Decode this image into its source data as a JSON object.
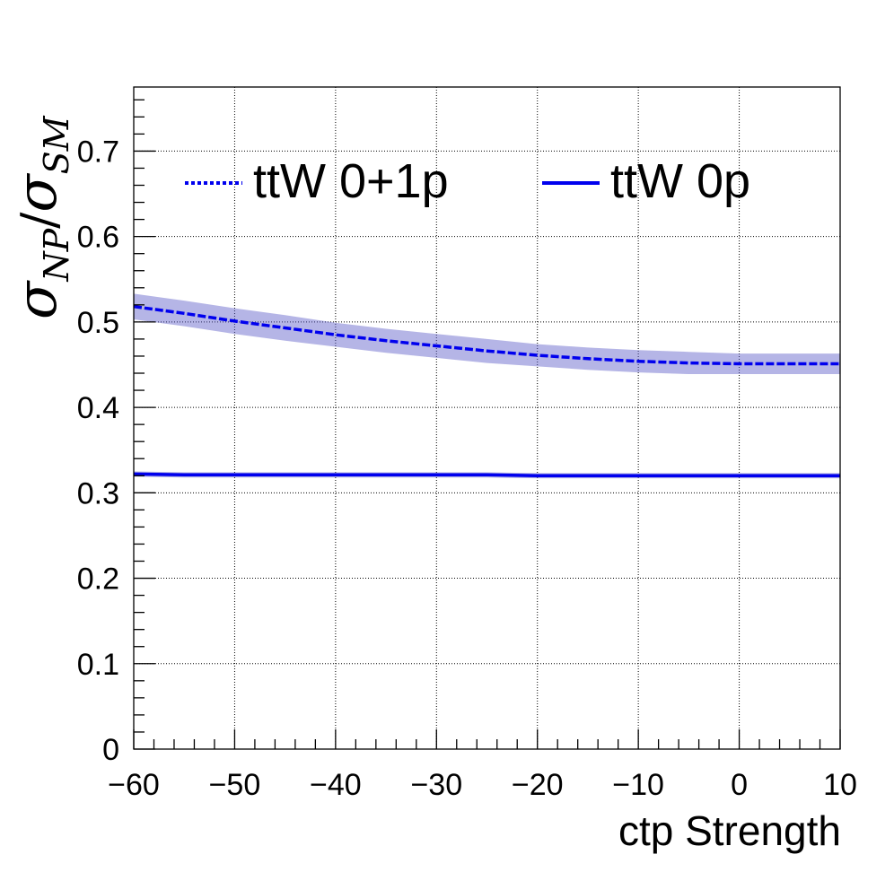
{
  "chart_data": {
    "type": "line",
    "xlabel": "ctp Strength",
    "ylabel": {
      "sym1": "σ",
      "sub1": "NP",
      "slash": "/",
      "sym2": "σ",
      "sub2": "SM"
    },
    "xlim": [
      -60,
      10
    ],
    "ylim": [
      0,
      0.775
    ],
    "x_ticks": [
      -60,
      -50,
      -40,
      -30,
      -20,
      -10,
      0,
      10
    ],
    "x_tick_labels": [
      "−60",
      "−50",
      "−40",
      "−30",
      "−20",
      "−10",
      "0",
      "10"
    ],
    "y_ticks": [
      0,
      0.1,
      0.2,
      0.3,
      0.4,
      0.5,
      0.6,
      0.7
    ],
    "y_tick_labels": [
      "0",
      "0.1",
      "0.2",
      "0.3",
      "0.4",
      "0.5",
      "0.6",
      "0.7"
    ],
    "grid": true,
    "legend_position": "top",
    "series": [
      {
        "name": "ttW 0+1p",
        "style": "dashed",
        "color": "#0000ee",
        "band_color": "#5b5bc8",
        "x": [
          -60,
          -55,
          -50,
          -45,
          -40,
          -35,
          -30,
          -25,
          -20,
          -15,
          -10,
          -5,
          0,
          5,
          10
        ],
        "y": [
          0.518,
          0.51,
          0.501,
          0.493,
          0.485,
          0.478,
          0.472,
          0.466,
          0.461,
          0.457,
          0.454,
          0.452,
          0.451,
          0.451,
          0.451
        ],
        "err": [
          0.015,
          0.015,
          0.015,
          0.015,
          0.014,
          0.014,
          0.014,
          0.014,
          0.013,
          0.013,
          0.013,
          0.013,
          0.012,
          0.012,
          0.012
        ]
      },
      {
        "name": "ttW 0p",
        "style": "solid",
        "color": "#0000ee",
        "band_color": "#5b5bc8",
        "x": [
          -60,
          -55,
          -50,
          -45,
          -40,
          -35,
          -30,
          -25,
          -20,
          -15,
          -10,
          -5,
          0,
          5,
          10
        ],
        "y": [
          0.322,
          0.321,
          0.321,
          0.321,
          0.321,
          0.321,
          0.321,
          0.321,
          0.32,
          0.32,
          0.32,
          0.32,
          0.32,
          0.32,
          0.32
        ],
        "err": [
          0.003,
          0.003,
          0.003,
          0.003,
          0.003,
          0.003,
          0.003,
          0.003,
          0.003,
          0.003,
          0.003,
          0.003,
          0.003,
          0.003,
          0.003
        ]
      }
    ]
  }
}
